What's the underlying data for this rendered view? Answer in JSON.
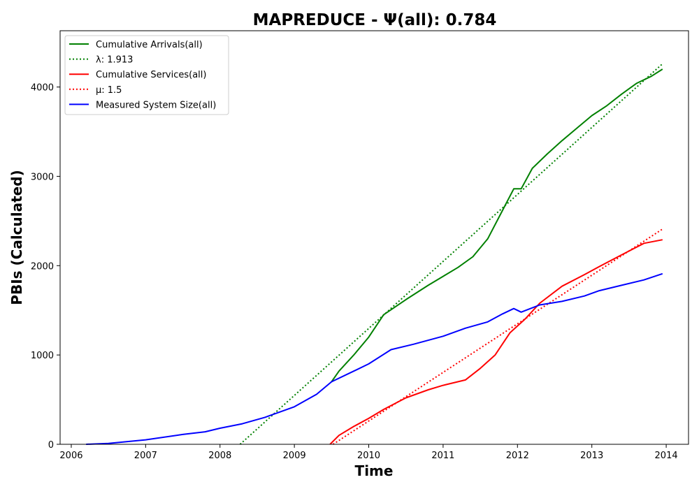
{
  "chart_data": {
    "type": "line",
    "title": "MAPREDUCE -  Ψ(all): 0.784",
    "xlabel": "Time",
    "ylabel": "PBIs (Calculated)",
    "xlim": [
      2005.85,
      2014.3
    ],
    "ylim": [
      0,
      4630
    ],
    "x_ticks": [
      "2006",
      "2007",
      "2008",
      "2009",
      "2010",
      "2011",
      "2012",
      "2013",
      "2014"
    ],
    "y_ticks": [
      "0",
      "1000",
      "2000",
      "3000",
      "4000"
    ],
    "grid": false,
    "legend_position": "top-left",
    "series": [
      {
        "name": "Cumulative Arrivals(all)",
        "color": "#008000",
        "style": "solid",
        "x": [
          2009.5,
          2009.6,
          2009.8,
          2010.0,
          2010.2,
          2010.5,
          2010.8,
          2011.0,
          2011.2,
          2011.4,
          2011.6,
          2011.8,
          2011.95,
          2012.05,
          2012.2,
          2012.4,
          2012.6,
          2012.8,
          2013.0,
          2013.2,
          2013.4,
          2013.6,
          2013.8,
          2013.95
        ],
        "y": [
          700,
          820,
          1000,
          1200,
          1450,
          1620,
          1780,
          1880,
          1980,
          2100,
          2300,
          2620,
          2860,
          2860,
          3090,
          3250,
          3400,
          3540,
          3680,
          3790,
          3920,
          4040,
          4120,
          4200
        ]
      },
      {
        "name": "λ: 1.913",
        "color": "#008000",
        "style": "dotted",
        "x": [
          2008.27,
          2013.95
        ],
        "y": [
          0,
          4260
        ]
      },
      {
        "name": "Cumulative Services(all)",
        "color": "#ff0000",
        "style": "solid",
        "x": [
          2009.48,
          2009.6,
          2009.8,
          2010.0,
          2010.2,
          2010.5,
          2010.8,
          2011.0,
          2011.3,
          2011.5,
          2011.7,
          2011.9,
          2012.1,
          2012.3,
          2012.6,
          2012.9,
          2013.1,
          2013.4,
          2013.7,
          2013.95
        ],
        "y": [
          0,
          100,
          200,
          290,
          390,
          520,
          610,
          660,
          720,
          850,
          1000,
          1250,
          1400,
          1580,
          1770,
          1900,
          1990,
          2120,
          2250,
          2290
        ]
      },
      {
        "name": "μ: 1.5",
        "color": "#ff0000",
        "style": "dotted",
        "x": [
          2009.52,
          2013.95
        ],
        "y": [
          0,
          2410
        ]
      },
      {
        "name": "Measured System Size(all)",
        "color": "#0000ff",
        "style": "solid",
        "x": [
          2006.2,
          2006.5,
          2007.0,
          2007.5,
          2007.8,
          2008.0,
          2008.3,
          2008.6,
          2009.0,
          2009.3,
          2009.5,
          2009.8,
          2010.0,
          2010.3,
          2010.6,
          2011.0,
          2011.3,
          2011.6,
          2011.8,
          2011.95,
          2012.05,
          2012.3,
          2012.6,
          2012.9,
          2013.1,
          2013.4,
          2013.7,
          2013.95
        ],
        "y": [
          0,
          10,
          50,
          110,
          140,
          180,
          230,
          300,
          420,
          560,
          700,
          820,
          900,
          1060,
          1120,
          1210,
          1300,
          1370,
          1460,
          1520,
          1480,
          1560,
          1600,
          1660,
          1720,
          1780,
          1840,
          1910
        ]
      }
    ]
  }
}
